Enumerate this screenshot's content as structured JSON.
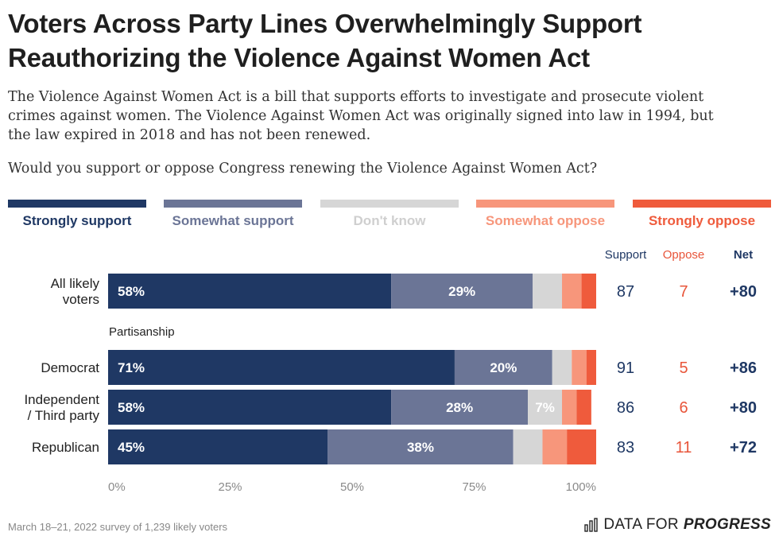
{
  "title_lines": [
    "Voters Across Party Lines Overwhelmingly Support",
    "Reauthorizing the Violence Against Women Act"
  ],
  "description_lines": [
    "The Violence Against Women Act is a bill that supports efforts to investigate and prosecute violent",
    "crimes against women. The Violence Against Women Act was originally signed into law in 1994, but",
    "the law expired in 2018 and has not been renewed."
  ],
  "question": "Would you support or oppose Congress renewing the Violence Against Women Act?",
  "footer_note": "March 18–21, 2022 survey of 1,239 likely voters",
  "brand": {
    "prefix": "DATA FOR",
    "emphasis": "PROGRESS",
    "icon": "bar-chart-logo-icon"
  },
  "colors": {
    "strongly_support": "#1f3864",
    "somewhat_support": "#6b7596",
    "dont_know": "#d6d6d6",
    "somewhat_oppose": "#f7967b",
    "strongly_oppose": "#ef5b3c",
    "support_text": "#1f3864",
    "oppose_text": "#e8553a",
    "axis_text": "#8a8a8a"
  },
  "chart_data": {
    "type": "bar",
    "orientation": "horizontal",
    "stacked": true,
    "categories": [
      "All likely voters",
      "Democrat",
      "Independent / Third party",
      "Republican"
    ],
    "group_label": "Partisanship",
    "series": [
      {
        "name": "Strongly support",
        "values": [
          58,
          71,
          58,
          45
        ],
        "labels": [
          "58%",
          "71%",
          "58%",
          "45%"
        ]
      },
      {
        "name": "Somewhat support",
        "values": [
          29,
          20,
          28,
          38
        ],
        "labels": [
          "29%",
          "20%",
          "28%",
          "38%"
        ]
      },
      {
        "name": "Don't know",
        "values": [
          6,
          4,
          7,
          6
        ],
        "labels": [
          "",
          "",
          "7%",
          ""
        ]
      },
      {
        "name": "Somewhat oppose",
        "values": [
          4,
          3,
          3,
          5
        ],
        "labels": [
          "",
          "",
          "",
          ""
        ]
      },
      {
        "name": "Strongly oppose",
        "values": [
          3,
          2,
          3,
          6
        ],
        "labels": [
          "",
          "",
          "",
          ""
        ]
      }
    ],
    "summary_headers": [
      "Support",
      "Oppose",
      "Net"
    ],
    "support": [
      87,
      91,
      86,
      83
    ],
    "oppose": [
      7,
      5,
      6,
      11
    ],
    "net": [
      "+80",
      "+86",
      "+80",
      "+72"
    ],
    "x_ticks": [
      "0%",
      "25%",
      "50%",
      "75%",
      "100%"
    ],
    "xlim": [
      0,
      100
    ]
  }
}
